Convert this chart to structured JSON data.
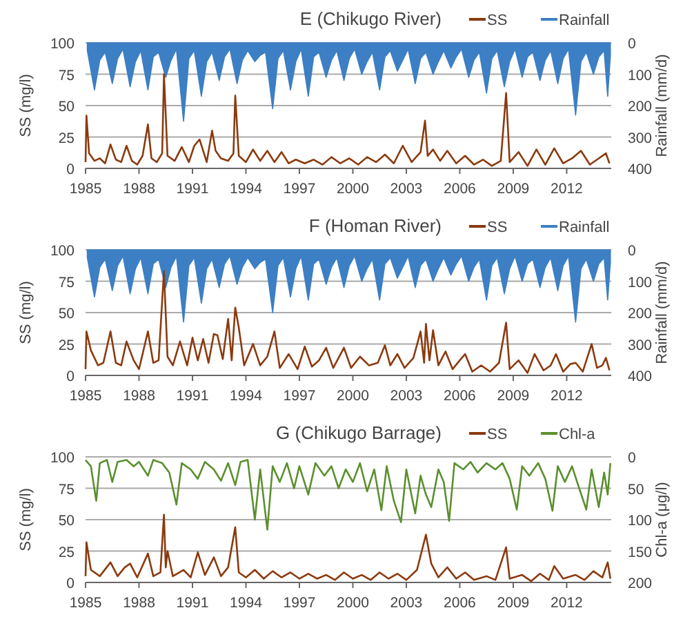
{
  "chart_data": [
    {
      "type": "line",
      "title": "E (Chikugo River)",
      "ylabel": "SS (mg/l)",
      "y2label": "Rainfall (mm/d)",
      "legend": "top right",
      "grid": "y",
      "xlim": [
        1985,
        2014.5
      ],
      "xticks": [
        1985,
        1988,
        1991,
        1994,
        1997,
        2000,
        2003,
        2006,
        2009,
        2012
      ],
      "ylim": [
        0,
        100
      ],
      "yticks": [
        0,
        25,
        50,
        75,
        100
      ],
      "y2lim": [
        400,
        0
      ],
      "y2ticks": [
        0,
        100,
        200,
        300,
        400
      ],
      "series": [
        {
          "name": "SS",
          "color": "#8b3a0e",
          "x": [
            1985,
            1985.05,
            1985.2,
            1985.5,
            1985.8,
            1986.1,
            1986.4,
            1986.7,
            1987,
            1987.3,
            1987.6,
            1987.9,
            1988.2,
            1988.5,
            1988.7,
            1989,
            1989.3,
            1989.4,
            1989.6,
            1990,
            1990.4,
            1990.8,
            1991.1,
            1991.4,
            1991.8,
            1992.1,
            1992.3,
            1992.6,
            1993,
            1993.3,
            1993.4,
            1993.6,
            1994,
            1994.4,
            1994.8,
            1995.2,
            1995.6,
            1996,
            1996.4,
            1996.8,
            1997.3,
            1997.8,
            1998.3,
            1998.8,
            1999.3,
            1999.8,
            2000.3,
            2000.8,
            2001.3,
            2001.8,
            2002.3,
            2002.8,
            2003.3,
            2003.8,
            2004.05,
            2004.2,
            2004.5,
            2004.9,
            2005.3,
            2005.8,
            2006.3,
            2006.8,
            2007.3,
            2007.8,
            2008.3,
            2008.6,
            2008.8,
            2009.3,
            2009.8,
            2010.3,
            2010.8,
            2011.3,
            2011.8,
            2012.3,
            2012.8,
            2013.3,
            2013.8,
            2014.2,
            2014.4
          ],
          "values": [
            5,
            42,
            12,
            6,
            8,
            4,
            19,
            7,
            5,
            18,
            6,
            3,
            10,
            35,
            8,
            5,
            12,
            75,
            10,
            6,
            17,
            5,
            18,
            23,
            5,
            30,
            14,
            8,
            6,
            12,
            58,
            10,
            5,
            15,
            6,
            14,
            5,
            13,
            4,
            7,
            4,
            7,
            3,
            9,
            4,
            8,
            3,
            9,
            5,
            11,
            4,
            18,
            5,
            13,
            38,
            10,
            15,
            6,
            14,
            4,
            10,
            3,
            7,
            2,
            6,
            60,
            5,
            13,
            2,
            15,
            3,
            16,
            4,
            8,
            14,
            3,
            8,
            12,
            4
          ]
        },
        {
          "name": "Rainfall",
          "color": "#3c7fc4",
          "type": "area",
          "axis": "y2",
          "x": [
            1985.1,
            1985.5,
            1985.8,
            1986.1,
            1986.5,
            1986.8,
            1987.1,
            1987.5,
            1987.8,
            1988.1,
            1988.5,
            1988.8,
            1989.1,
            1989.5,
            1989.8,
            1990.1,
            1990.5,
            1990.8,
            1991.1,
            1991.5,
            1991.8,
            1992.1,
            1992.5,
            1992.8,
            1993.1,
            1993.5,
            1993.8,
            1994.1,
            1994.5,
            1994.8,
            1995.1,
            1995.5,
            1995.8,
            1996.1,
            1996.5,
            1996.8,
            1997.1,
            1997.5,
            1997.8,
            1998.1,
            1998.5,
            1998.8,
            1999.1,
            1999.5,
            1999.8,
            2000.1,
            2000.5,
            2000.8,
            2001.1,
            2001.5,
            2001.8,
            2002.1,
            2002.5,
            2002.8,
            2003.1,
            2003.5,
            2003.8,
            2004.1,
            2004.5,
            2004.8,
            2005.1,
            2005.5,
            2005.8,
            2006.1,
            2006.5,
            2006.8,
            2007.1,
            2007.5,
            2007.8,
            2008.1,
            2008.5,
            2008.8,
            2009.1,
            2009.5,
            2009.8,
            2010.1,
            2010.5,
            2010.8,
            2011.1,
            2011.5,
            2011.8,
            2012.1,
            2012.5,
            2012.8,
            2013.1,
            2013.5,
            2013.8,
            2014.1,
            2014.3,
            2014.45
          ],
          "values": [
            25,
            150,
            55,
            30,
            130,
            50,
            20,
            140,
            60,
            25,
            150,
            45,
            30,
            110,
            55,
            20,
            250,
            50,
            25,
            170,
            60,
            30,
            120,
            45,
            20,
            130,
            55,
            25,
            60,
            40,
            30,
            210,
            50,
            25,
            150,
            60,
            20,
            170,
            45,
            30,
            110,
            55,
            25,
            120,
            50,
            20,
            100,
            60,
            30,
            150,
            45,
            25,
            90,
            55,
            20,
            130,
            50,
            30,
            100,
            60,
            25,
            80,
            45,
            20,
            110,
            55,
            30,
            160,
            50,
            25,
            140,
            60,
            20,
            110,
            45,
            30,
            120,
            55,
            25,
            130,
            50,
            20,
            230,
            60,
            30,
            100,
            45,
            25,
            170,
            40
          ]
        }
      ]
    },
    {
      "type": "line",
      "title": "F (Homan River)",
      "ylabel": "SS (mg/l)",
      "y2label": "Rainfall (mm/d)",
      "legend": "top right",
      "grid": "y",
      "xlim": [
        1985,
        2014.5
      ],
      "xticks": [
        1985,
        1988,
        1991,
        1994,
        1997,
        2000,
        2003,
        2006,
        2009,
        2012
      ],
      "ylim": [
        0,
        100
      ],
      "yticks": [
        0,
        25,
        50,
        75,
        100
      ],
      "y2lim": [
        400,
        0
      ],
      "y2ticks": [
        0,
        100,
        200,
        300,
        400
      ],
      "series": [
        {
          "name": "SS",
          "color": "#8b3a0e",
          "x": [
            1985,
            1985.05,
            1985.3,
            1985.7,
            1986,
            1986.4,
            1986.7,
            1987,
            1987.3,
            1987.7,
            1988,
            1988.5,
            1988.8,
            1989.1,
            1989.4,
            1989.6,
            1989.9,
            1990.3,
            1990.7,
            1991,
            1991.3,
            1991.6,
            1991.9,
            1992.2,
            1992.4,
            1992.7,
            1993,
            1993.2,
            1993.4,
            1993.6,
            1993.9,
            1994.4,
            1994.8,
            1995.2,
            1995.6,
            1995.9,
            1996.4,
            1996.9,
            1997.3,
            1997.7,
            1998.1,
            1998.5,
            1998.9,
            1999.5,
            1999.9,
            2000.4,
            2000.9,
            2001.4,
            2001.8,
            2002.1,
            2002.5,
            2002.9,
            2003.4,
            2003.8,
            2004,
            2004.1,
            2004.3,
            2004.5,
            2004.8,
            2005.2,
            2005.6,
            2006,
            2006.3,
            2006.7,
            2007.2,
            2007.7,
            2008.2,
            2008.6,
            2008.8,
            2009.3,
            2009.8,
            2010.2,
            2010.7,
            2011.1,
            2011.4,
            2011.8,
            2012.2,
            2012.5,
            2012.9,
            2013.4,
            2013.7,
            2014,
            2014.2,
            2014.4
          ],
          "values": [
            5,
            35,
            20,
            8,
            10,
            35,
            10,
            8,
            27,
            12,
            5,
            35,
            10,
            12,
            83,
            15,
            8,
            27,
            8,
            30,
            12,
            29,
            10,
            33,
            32,
            13,
            45,
            12,
            54,
            38,
            8,
            25,
            8,
            15,
            35,
            6,
            17,
            5,
            23,
            7,
            12,
            22,
            6,
            22,
            6,
            15,
            8,
            10,
            24,
            8,
            17,
            6,
            14,
            35,
            10,
            41,
            12,
            36,
            8,
            19,
            5,
            12,
            17,
            3,
            8,
            3,
            10,
            42,
            5,
            12,
            2,
            17,
            4,
            8,
            17,
            3,
            9,
            10,
            3,
            25,
            6,
            8,
            14,
            4
          ]
        },
        {
          "name": "Rainfall",
          "color": "#3c7fc4",
          "type": "area",
          "axis": "y2",
          "x": [
            1985.1,
            1985.5,
            1985.8,
            1986.1,
            1986.5,
            1986.8,
            1987.1,
            1987.5,
            1987.8,
            1988.1,
            1988.5,
            1988.8,
            1989.1,
            1989.5,
            1989.8,
            1990.1,
            1990.5,
            1990.8,
            1991.1,
            1991.5,
            1991.8,
            1992.1,
            1992.5,
            1992.8,
            1993.1,
            1993.5,
            1993.8,
            1994.1,
            1994.5,
            1994.8,
            1995.1,
            1995.5,
            1995.8,
            1996.1,
            1996.5,
            1996.8,
            1997.1,
            1997.5,
            1997.8,
            1998.1,
            1998.5,
            1998.8,
            1999.1,
            1999.5,
            1999.8,
            2000.1,
            2000.5,
            2000.8,
            2001.1,
            2001.5,
            2001.8,
            2002.1,
            2002.5,
            2002.8,
            2003.1,
            2003.5,
            2003.8,
            2004.1,
            2004.5,
            2004.8,
            2005.1,
            2005.5,
            2005.8,
            2006.1,
            2006.5,
            2006.8,
            2007.1,
            2007.5,
            2007.8,
            2008.1,
            2008.5,
            2008.8,
            2009.1,
            2009.5,
            2009.8,
            2010.1,
            2010.5,
            2010.8,
            2011.1,
            2011.5,
            2011.8,
            2012.1,
            2012.5,
            2012.8,
            2013.1,
            2013.5,
            2013.8,
            2014.1,
            2014.3,
            2014.45
          ],
          "values": [
            25,
            150,
            55,
            30,
            130,
            50,
            20,
            140,
            60,
            25,
            140,
            45,
            30,
            120,
            55,
            20,
            230,
            50,
            25,
            170,
            60,
            30,
            120,
            45,
            20,
            110,
            55,
            25,
            60,
            40,
            30,
            200,
            50,
            25,
            150,
            60,
            20,
            160,
            45,
            30,
            110,
            55,
            25,
            120,
            50,
            20,
            100,
            60,
            30,
            160,
            45,
            25,
            90,
            55,
            20,
            120,
            50,
            30,
            100,
            60,
            25,
            80,
            45,
            20,
            100,
            55,
            30,
            160,
            50,
            25,
            140,
            60,
            20,
            100,
            45,
            30,
            120,
            55,
            25,
            130,
            50,
            20,
            230,
            60,
            30,
            100,
            45,
            25,
            160,
            40
          ]
        }
      ]
    },
    {
      "type": "line",
      "title": "G (Chikugo Barrage)",
      "ylabel": "SS (mg/l)",
      "y2label": "Chl-a (μg/l)",
      "legend": "top right",
      "grid": "y",
      "xlim": [
        1985,
        2014.5
      ],
      "xticks": [
        1985,
        1988,
        1991,
        1994,
        1997,
        2000,
        2003,
        2006,
        2009,
        2012
      ],
      "ylim": [
        0,
        100
      ],
      "yticks": [
        0,
        25,
        50,
        75,
        100
      ],
      "y2lim": [
        200,
        0
      ],
      "y2ticks": [
        0,
        50,
        100,
        150,
        200
      ],
      "series": [
        {
          "name": "SS",
          "color": "#8b3a0e",
          "x": [
            1985,
            1985.05,
            1985.3,
            1985.8,
            1986.4,
            1986.8,
            1987.2,
            1987.5,
            1987.9,
            1988.5,
            1988.8,
            1989.2,
            1989.4,
            1989.5,
            1989.6,
            1989.9,
            1990.5,
            1990.9,
            1991.3,
            1991.7,
            1992.2,
            1992.6,
            1993,
            1993.4,
            1993.6,
            1994,
            1994.5,
            1995,
            1995.5,
            1996,
            1996.5,
            1997,
            1997.5,
            1998,
            1998.5,
            1999,
            1999.5,
            2000,
            2000.5,
            2001,
            2001.5,
            2002,
            2002.5,
            2003,
            2003.6,
            2004.1,
            2004.4,
            2004.8,
            2005.3,
            2005.8,
            2006.3,
            2006.8,
            2007.5,
            2008,
            2008.6,
            2008.8,
            2009.5,
            2010,
            2010.5,
            2011,
            2011.3,
            2011.8,
            2012.5,
            2013,
            2013.5,
            2014,
            2014.3,
            2014.45
          ],
          "values": [
            5,
            32,
            10,
            5,
            16,
            5,
            12,
            15,
            4,
            23,
            5,
            8,
            54,
            12,
            25,
            5,
            10,
            4,
            24,
            6,
            20,
            5,
            12,
            44,
            8,
            4,
            10,
            3,
            9,
            4,
            8,
            3,
            7,
            3,
            6,
            2,
            8,
            3,
            6,
            2,
            8,
            3,
            7,
            2,
            10,
            38,
            15,
            4,
            12,
            3,
            8,
            2,
            5,
            2,
            28,
            3,
            6,
            1,
            7,
            2,
            13,
            3,
            6,
            2,
            9,
            4,
            16,
            3
          ]
        },
        {
          "name": "Chl-a",
          "color": "#5b8f2e",
          "type": "line",
          "axis": "y2",
          "x": [
            1985,
            1985.3,
            1985.6,
            1985.8,
            1986.2,
            1986.5,
            1986.8,
            1987.3,
            1987.7,
            1988,
            1988.5,
            1988.8,
            1989.3,
            1989.7,
            1990.1,
            1990.4,
            1990.9,
            1991.3,
            1991.7,
            1992.2,
            1992.6,
            1993,
            1993.4,
            1993.7,
            1994.1,
            1994.5,
            1994.8,
            1995.2,
            1995.5,
            1995.9,
            1996.3,
            1996.7,
            1997,
            1997.5,
            1997.9,
            1998.4,
            1998.8,
            1999.2,
            1999.6,
            2000,
            2000.4,
            2000.8,
            2001.2,
            2001.6,
            2001.9,
            2002.3,
            2002.7,
            2003,
            2003.5,
            2003.8,
            2004.1,
            2004.4,
            2004.8,
            2005.1,
            2005.4,
            2005.7,
            2006.2,
            2006.6,
            2007,
            2007.5,
            2008,
            2008.4,
            2008.8,
            2009.2,
            2009.5,
            2009.9,
            2010.4,
            2010.8,
            2011.2,
            2011.5,
            2011.9,
            2012.3,
            2012.7,
            2013.1,
            2013.4,
            2013.8,
            2014.1,
            2014.3,
            2014.45
          ],
          "values": [
            5,
            15,
            70,
            10,
            5,
            40,
            8,
            5,
            15,
            8,
            30,
            5,
            10,
            25,
            76,
            10,
            20,
            35,
            8,
            20,
            38,
            10,
            45,
            8,
            5,
            100,
            20,
            116,
            15,
            40,
            10,
            50,
            15,
            60,
            10,
            30,
            15,
            50,
            20,
            40,
            10,
            55,
            20,
            85,
            15,
            70,
            104,
            20,
            90,
            30,
            60,
            80,
            20,
            40,
            102,
            10,
            20,
            8,
            25,
            10,
            20,
            10,
            35,
            84,
            15,
            30,
            10,
            35,
            86,
            15,
            40,
            15,
            50,
            84,
            20,
            80,
            25,
            60,
            10
          ]
        }
      ]
    }
  ]
}
